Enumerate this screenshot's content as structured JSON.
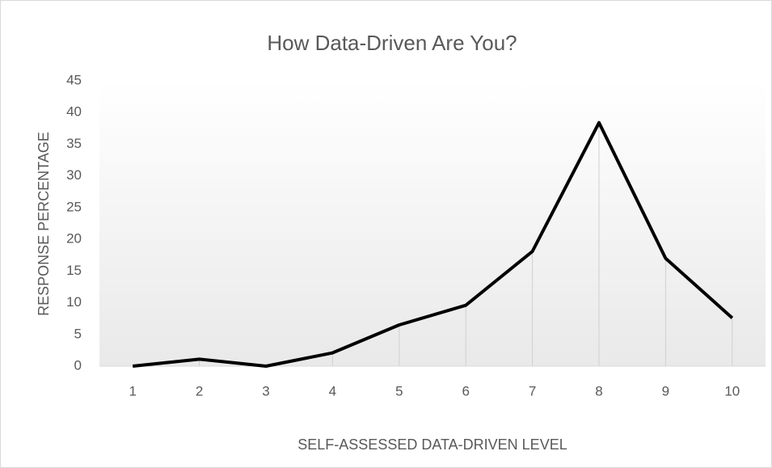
{
  "chart_data": {
    "type": "line",
    "title": "How Data-Driven Are You?",
    "x_label": "SELF-ASSESSED DATA-DRIVEN LEVEL",
    "y_label": "RESPONSE PERCENTAGE",
    "categories": [
      "1",
      "2",
      "3",
      "4",
      "5",
      "6",
      "7",
      "8",
      "9",
      "10"
    ],
    "series": [
      {
        "name": "Response percentage",
        "color": "#000000",
        "values": [
          0,
          1.1,
          0,
          2.1,
          6.5,
          9.6,
          18.1,
          38.4,
          17,
          7.6
        ]
      }
    ],
    "ylim": [
      0,
      45
    ],
    "yticks": [
      0,
      5,
      10,
      15,
      20,
      25,
      30,
      35,
      40,
      45
    ],
    "drop_lines": true,
    "grid": false
  }
}
